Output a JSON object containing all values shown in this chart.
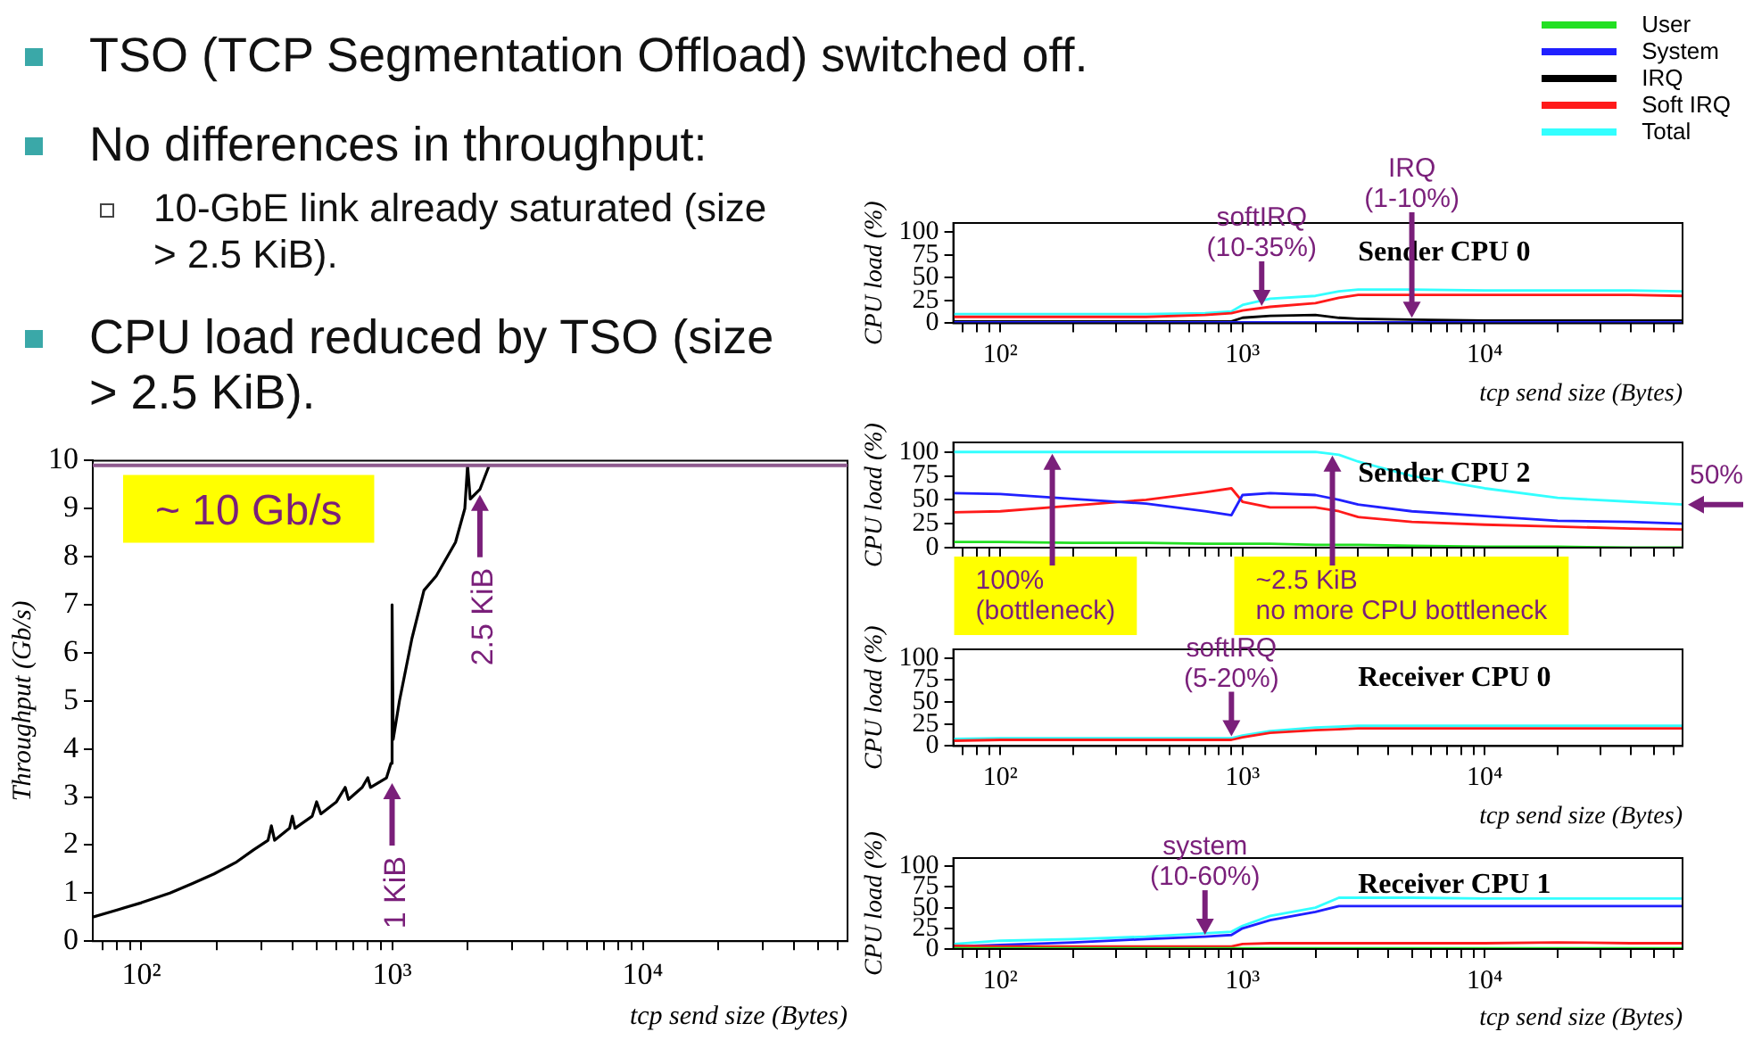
{
  "chart_data": [
    {
      "type": "other",
      "annotations": [
        "TSO (TCP Segmentation Offload) switched off.",
        "No differences in throughput:",
        "10-GbE link already saturated (size > 2.5 KiB).",
        "CPU load reduced by TSO (size > 2.5 KiB)."
      ]
    },
    {
      "type": "line",
      "xlabel": "tcp send size (Bytes)",
      "ylabel": "Throughput (Gb/s)",
      "log": "x",
      "color": "#000000",
      "x": [
        64,
        80,
        100,
        130,
        160,
        195,
        240,
        280,
        320,
        330,
        340,
        390,
        400,
        410,
        480,
        500,
        520,
        600,
        650,
        670,
        760,
        800,
        820,
        950,
        990,
        1000,
        1010,
        1070,
        1200,
        1340,
        1500,
        1790,
        1950,
        2000,
        2050,
        2240,
        2440
      ],
      "values": [
        0.5,
        0.65,
        0.8,
        1.0,
        1.2,
        1.4,
        1.65,
        1.9,
        2.1,
        2.4,
        2.1,
        2.35,
        2.6,
        2.35,
        2.6,
        2.9,
        2.65,
        2.9,
        3.2,
        2.95,
        3.2,
        3.4,
        3.2,
        3.4,
        3.7,
        7.0,
        4.2,
        5.0,
        6.3,
        7.3,
        7.6,
        8.3,
        9.0,
        9.9,
        9.2,
        9.4,
        9.9
      ],
      "xlim": [
        64,
        65536
      ],
      "ylim": [
        0,
        10
      ],
      "xticks": [
        {
          "value": 70,
          "label": null
        },
        {
          "value": 80,
          "label": null
        },
        {
          "value": 90,
          "label": null
        },
        {
          "value": 100,
          "label": "10²"
        },
        {
          "value": 200,
          "label": null
        },
        {
          "value": 300,
          "label": null
        },
        {
          "value": 400,
          "label": null
        },
        {
          "value": 500,
          "label": null
        },
        {
          "value": 600,
          "label": null
        },
        {
          "value": 700,
          "label": null
        },
        {
          "value": 800,
          "label": null
        },
        {
          "value": 900,
          "label": null
        },
        {
          "value": 1000,
          "label": "10³"
        },
        {
          "value": 2000,
          "label": null
        },
        {
          "value": 3000,
          "label": null
        },
        {
          "value": 4000,
          "label": null
        },
        {
          "value": 5000,
          "label": null
        },
        {
          "value": 6000,
          "label": null
        },
        {
          "value": 7000,
          "label": null
        },
        {
          "value": 8000,
          "label": null
        },
        {
          "value": 9000,
          "label": null
        },
        {
          "value": 10000,
          "label": "10⁴"
        },
        {
          "value": 20000,
          "label": null
        },
        {
          "value": 30000,
          "label": null
        },
        {
          "value": 40000,
          "label": null
        },
        {
          "value": 50000,
          "label": null
        },
        {
          "value": 60000,
          "label": null
        }
      ],
      "yticks": [
        0,
        1,
        2,
        3,
        4,
        5,
        6,
        7,
        8,
        9,
        10
      ],
      "ref_lines": [
        {
          "axis": "y",
          "value": 9.9,
          "color": "#8e5a8e"
        }
      ],
      "annotations": [
        "~ 10 Gb/s",
        {
          "text": "1 KiB",
          "x": 1000,
          "y": 3.4
        },
        {
          "text": "2.5 KiB",
          "x": 2240,
          "y": 9.4
        }
      ]
    },
    {
      "type": "line",
      "title": "Sender CPU 0",
      "xlabel": "tcp send size (Bytes)",
      "ylabel": "CPU load (%)",
      "log": "x",
      "legend": "top right",
      "x": [
        64,
        100,
        200,
        400,
        700,
        900,
        1000,
        1300,
        2000,
        2500,
        3000,
        5000,
        10000,
        20000,
        40000,
        65536
      ],
      "series": [
        {
          "name": "User",
          "color": "#22e022",
          "values": [
            null,
            null,
            null,
            null,
            null,
            null,
            null,
            null,
            null,
            null,
            null,
            null,
            null,
            null,
            null,
            null
          ]
        },
        {
          "name": "System",
          "color": "#2020ff",
          "values": [
            1,
            1,
            1,
            1,
            1,
            1,
            1,
            1,
            1,
            1,
            1,
            1,
            1,
            1,
            1,
            1
          ]
        },
        {
          "name": "IRQ",
          "color": "#000000",
          "values": [
            2,
            2,
            2,
            2,
            2,
            2,
            6,
            8,
            9,
            6,
            5,
            4,
            3,
            3,
            3,
            3
          ]
        },
        {
          "name": "Soft IRQ",
          "color": "#ff1a1a",
          "values": [
            7,
            7,
            7,
            7,
            9,
            11,
            14,
            18,
            22,
            28,
            31,
            31,
            31,
            31,
            31,
            30
          ]
        },
        {
          "name": "Total",
          "color": "#33ffff",
          "values": [
            10,
            10,
            10,
            10,
            11,
            13,
            20,
            27,
            30,
            35,
            37,
            37,
            36,
            36,
            36,
            35
          ]
        }
      ],
      "xlim": [
        64,
        65536
      ],
      "ylim": [
        0,
        110
      ],
      "xticks": [
        {
          "value": 70,
          "label": null
        },
        {
          "value": 80,
          "label": null
        },
        {
          "value": 90,
          "label": null
        },
        {
          "value": 100,
          "label": "10²"
        },
        {
          "value": 200,
          "label": null
        },
        {
          "value": 300,
          "label": null
        },
        {
          "value": 400,
          "label": null
        },
        {
          "value": 500,
          "label": null
        },
        {
          "value": 600,
          "label": null
        },
        {
          "value": 700,
          "label": null
        },
        {
          "value": 800,
          "label": null
        },
        {
          "value": 900,
          "label": null
        },
        {
          "value": 1000,
          "label": "10³"
        },
        {
          "value": 2000,
          "label": null
        },
        {
          "value": 3000,
          "label": null
        },
        {
          "value": 4000,
          "label": null
        },
        {
          "value": 5000,
          "label": null
        },
        {
          "value": 6000,
          "label": null
        },
        {
          "value": 7000,
          "label": null
        },
        {
          "value": 8000,
          "label": null
        },
        {
          "value": 9000,
          "label": null
        },
        {
          "value": 10000,
          "label": "10⁴"
        },
        {
          "value": 20000,
          "label": null
        },
        {
          "value": 30000,
          "label": null
        },
        {
          "value": 40000,
          "label": null
        },
        {
          "value": 50000,
          "label": null
        },
        {
          "value": 60000,
          "label": null
        }
      ],
      "yticks": [
        0,
        25,
        50,
        75,
        100
      ],
      "annotations": [
        {
          "text": "softIRQ\n(10-35%)",
          "x": 1200,
          "y": 17
        },
        {
          "text": "IRQ\n(1-10%)",
          "x": 5000,
          "y": 4
        }
      ]
    },
    {
      "type": "line",
      "title": "Sender CPU 2",
      "ylabel": "CPU load (%)",
      "log": "x",
      "tick_labels": "y",
      "x": [
        64,
        100,
        200,
        400,
        700,
        900,
        1000,
        1300,
        2000,
        2500,
        3000,
        5000,
        10000,
        20000,
        40000,
        65536
      ],
      "series": [
        {
          "color": "#22e022",
          "values": [
            6,
            6,
            5,
            5,
            4,
            4,
            4,
            4,
            3,
            3,
            3,
            2,
            1,
            1,
            0,
            0
          ]
        },
        {
          "color": "#2020ff",
          "values": [
            57,
            56,
            51,
            46,
            38,
            34,
            55,
            57,
            55,
            50,
            45,
            38,
            33,
            28,
            27,
            25
          ]
        },
        {
          "color": "#ff1a1a",
          "values": [
            37,
            38,
            44,
            50,
            58,
            62,
            48,
            42,
            42,
            38,
            32,
            27,
            24,
            22,
            20,
            19
          ]
        },
        {
          "color": "#33ffff",
          "values": [
            100,
            100,
            100,
            100,
            100,
            100,
            100,
            100,
            100,
            97,
            90,
            75,
            62,
            52,
            48,
            45
          ]
        }
      ],
      "xlim": [
        64,
        65536
      ],
      "ylim": [
        0,
        110
      ],
      "xticks": [
        {
          "value": 70,
          "label": null
        },
        {
          "value": 80,
          "label": null
        },
        {
          "value": 90,
          "label": null
        },
        {
          "value": 100,
          "label": null
        },
        {
          "value": 200,
          "label": null
        },
        {
          "value": 300,
          "label": null
        },
        {
          "value": 400,
          "label": null
        },
        {
          "value": 500,
          "label": null
        },
        {
          "value": 600,
          "label": null
        },
        {
          "value": 700,
          "label": null
        },
        {
          "value": 800,
          "label": null
        },
        {
          "value": 900,
          "label": null
        },
        {
          "value": 1000,
          "label": null
        },
        {
          "value": 2000,
          "label": null
        },
        {
          "value": 3000,
          "label": null
        },
        {
          "value": 4000,
          "label": null
        },
        {
          "value": 5000,
          "label": null
        },
        {
          "value": 6000,
          "label": null
        },
        {
          "value": 7000,
          "label": null
        },
        {
          "value": 8000,
          "label": null
        },
        {
          "value": 9000,
          "label": null
        },
        {
          "value": 10000,
          "label": null
        },
        {
          "value": 20000,
          "label": null
        },
        {
          "value": 30000,
          "label": null
        },
        {
          "value": 40000,
          "label": null
        },
        {
          "value": 50000,
          "label": null
        },
        {
          "value": 60000,
          "label": null
        }
      ],
      "yticks": [
        0,
        25,
        50,
        75,
        100
      ],
      "annotations": [
        {
          "text": "100%\n(bottleneck)",
          "x": 164,
          "y": 100
        },
        {
          "text": "~2.5 KiB\nno more CPU bottleneck",
          "x": 2350,
          "y": 98
        },
        {
          "text": "50%",
          "x": 65536,
          "y": 45
        }
      ]
    },
    {
      "type": "line",
      "title": "Receiver CPU 0",
      "xlabel": "tcp send size (Bytes)",
      "ylabel": "CPU load (%)",
      "log": "x",
      "x": [
        64,
        100,
        200,
        400,
        700,
        900,
        1000,
        1300,
        2000,
        2500,
        3000,
        5000,
        10000,
        20000,
        40000,
        65536
      ],
      "series": [
        {
          "color": "#ff1a1a",
          "values": [
            6,
            7,
            7,
            7,
            7,
            7,
            10,
            15,
            18,
            19,
            20,
            20,
            20,
            20,
            20,
            20
          ]
        },
        {
          "color": "#33ffff",
          "values": [
            8,
            9,
            9,
            9,
            9,
            9,
            12,
            17,
            21,
            22,
            23,
            23,
            23,
            23,
            23,
            23
          ]
        }
      ],
      "xlim": [
        64,
        65536
      ],
      "ylim": [
        0,
        110
      ],
      "xticks": [
        {
          "value": 70,
          "label": null
        },
        {
          "value": 80,
          "label": null
        },
        {
          "value": 90,
          "label": null
        },
        {
          "value": 100,
          "label": "10²"
        },
        {
          "value": 200,
          "label": null
        },
        {
          "value": 300,
          "label": null
        },
        {
          "value": 400,
          "label": null
        },
        {
          "value": 500,
          "label": null
        },
        {
          "value": 600,
          "label": null
        },
        {
          "value": 700,
          "label": null
        },
        {
          "value": 800,
          "label": null
        },
        {
          "value": 900,
          "label": null
        },
        {
          "value": 1000,
          "label": "10³"
        },
        {
          "value": 2000,
          "label": null
        },
        {
          "value": 3000,
          "label": null
        },
        {
          "value": 4000,
          "label": null
        },
        {
          "value": 5000,
          "label": null
        },
        {
          "value": 6000,
          "label": null
        },
        {
          "value": 7000,
          "label": null
        },
        {
          "value": 8000,
          "label": null
        },
        {
          "value": 9000,
          "label": null
        },
        {
          "value": 10000,
          "label": "10⁴"
        },
        {
          "value": 20000,
          "label": null
        },
        {
          "value": 30000,
          "label": null
        },
        {
          "value": 40000,
          "label": null
        },
        {
          "value": 50000,
          "label": null
        },
        {
          "value": 60000,
          "label": null
        }
      ],
      "yticks": [
        0,
        25,
        50,
        75,
        100
      ],
      "annotations": [
        {
          "text": "softIRQ\n(5-20%)",
          "x": 900,
          "y": 9
        }
      ]
    },
    {
      "type": "line",
      "title": "Receiver CPU 1",
      "xlabel": "tcp send size (Bytes)",
      "ylabel": "CPU load (%)",
      "log": "x",
      "x": [
        64,
        100,
        200,
        400,
        700,
        900,
        1000,
        1300,
        2000,
        2500,
        3000,
        5000,
        10000,
        20000,
        40000,
        65536
      ],
      "series": [
        {
          "color": "#22e022",
          "values": [
            1,
            1,
            1,
            1,
            1,
            1,
            1,
            1,
            1,
            1,
            1,
            1,
            1,
            1,
            1,
            1
          ]
        },
        {
          "color": "#ff1a1a",
          "values": [
            4,
            3,
            3,
            3,
            3,
            3,
            6,
            7,
            7,
            7,
            7,
            7,
            7,
            8,
            7,
            7
          ]
        },
        {
          "color": "#2020ff",
          "values": [
            3,
            5,
            8,
            12,
            15,
            17,
            25,
            35,
            45,
            52,
            52,
            52,
            52,
            52,
            52,
            52
          ]
        },
        {
          "color": "#33ffff",
          "values": [
            6,
            10,
            12,
            15,
            19,
            21,
            28,
            40,
            50,
            62,
            62,
            62,
            61,
            61,
            61,
            61
          ]
        }
      ],
      "xlim": [
        64,
        65536
      ],
      "ylim": [
        0,
        110
      ],
      "xticks": [
        {
          "value": 70,
          "label": null
        },
        {
          "value": 80,
          "label": null
        },
        {
          "value": 90,
          "label": null
        },
        {
          "value": 100,
          "label": "10²"
        },
        {
          "value": 200,
          "label": null
        },
        {
          "value": 300,
          "label": null
        },
        {
          "value": 400,
          "label": null
        },
        {
          "value": 500,
          "label": null
        },
        {
          "value": 600,
          "label": null
        },
        {
          "value": 700,
          "label": null
        },
        {
          "value": 800,
          "label": null
        },
        {
          "value": 900,
          "label": null
        },
        {
          "value": 1000,
          "label": "10³"
        },
        {
          "value": 2000,
          "label": null
        },
        {
          "value": 3000,
          "label": null
        },
        {
          "value": 4000,
          "label": null
        },
        {
          "value": 5000,
          "label": null
        },
        {
          "value": 6000,
          "label": null
        },
        {
          "value": 7000,
          "label": null
        },
        {
          "value": 8000,
          "label": null
        },
        {
          "value": 9000,
          "label": null
        },
        {
          "value": 10000,
          "label": "10⁴"
        },
        {
          "value": 20000,
          "label": null
        },
        {
          "value": 30000,
          "label": null
        },
        {
          "value": 40000,
          "label": null
        },
        {
          "value": 50000,
          "label": null
        },
        {
          "value": 60000,
          "label": null
        }
      ],
      "yticks": [
        0,
        25,
        50,
        75,
        100
      ],
      "annotations": [
        {
          "text": "system\n(10-60%)",
          "x": 700,
          "y": 15
        }
      ]
    }
  ]
}
